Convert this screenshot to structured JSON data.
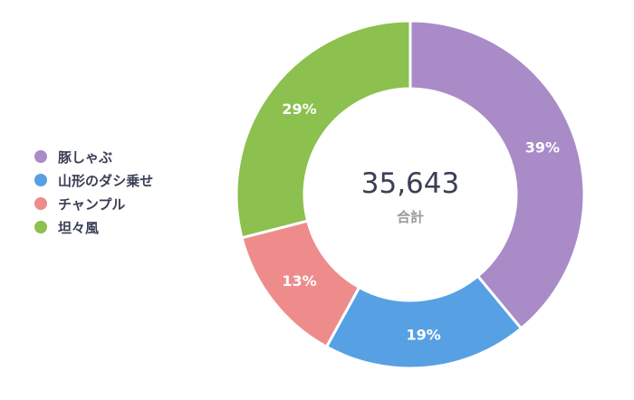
{
  "chart_data": {
    "type": "pie",
    "donut": true,
    "categories": [
      "豚しゃぶ",
      "山形のダシ乗せ",
      "チャンプル",
      "坦々風"
    ],
    "values": [
      39,
      19,
      13,
      29
    ],
    "value_labels": [
      "39%",
      "19%",
      "13%",
      "29%"
    ],
    "colors": [
      "#a98bc8",
      "#57a0e3",
      "#ee8c8c",
      "#8cc04f"
    ],
    "legend_position": "left",
    "center": {
      "total": "35,643",
      "label": "合計"
    }
  }
}
